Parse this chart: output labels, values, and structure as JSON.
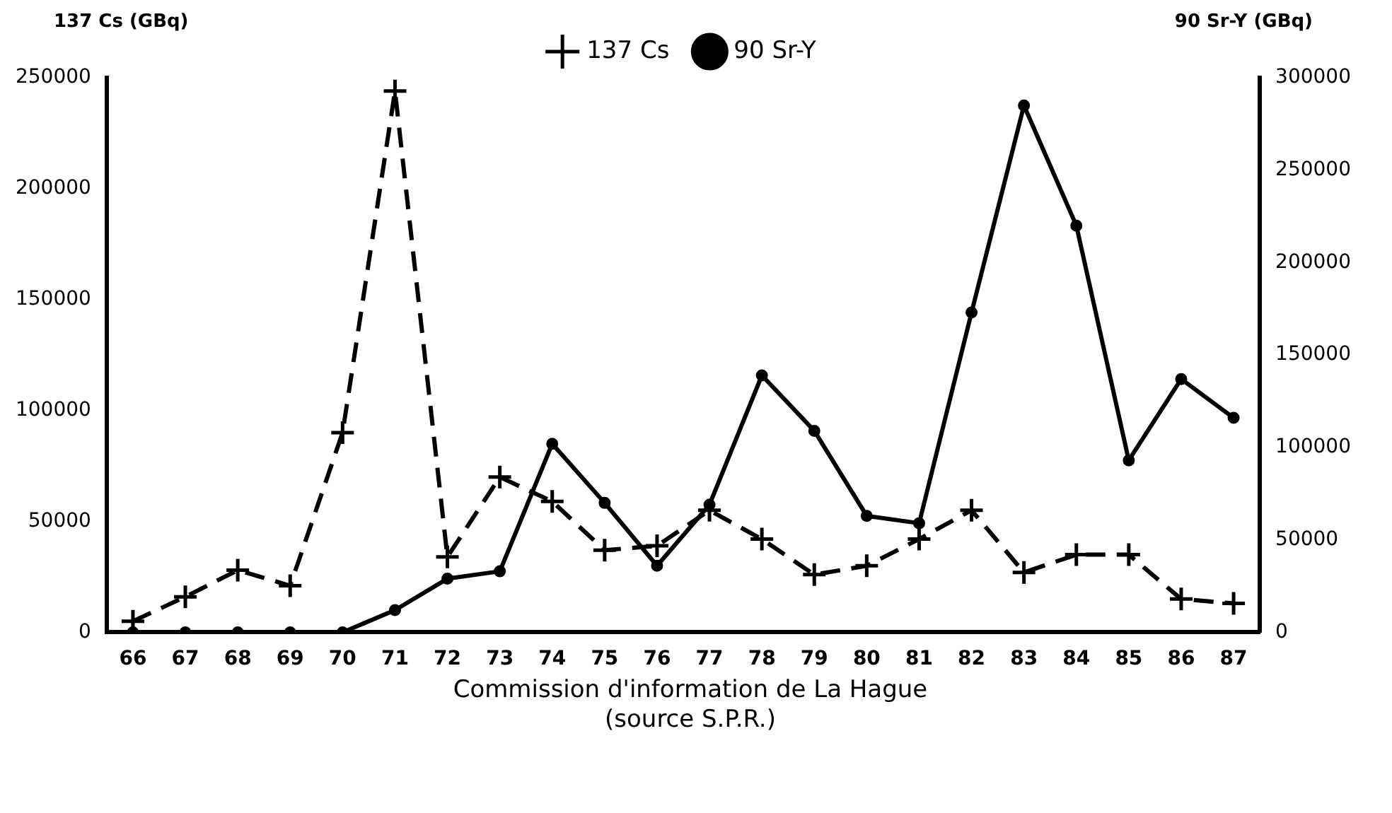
{
  "chart_data": {
    "type": "line",
    "ylabel": "137 Cs (GBq)",
    "y2label": "90 Sr-Y (GBq)",
    "categories": [
      "66",
      "67",
      "68",
      "69",
      "70",
      "71",
      "72",
      "73",
      "74",
      "75",
      "76",
      "77",
      "78",
      "79",
      "80",
      "81",
      "82",
      "83",
      "84",
      "85",
      "86",
      "87"
    ],
    "series": [
      {
        "name": "137 Cs",
        "color": "#000000",
        "marker": "cross",
        "line_style": "dashed",
        "values": [
          5000,
          16000,
          28000,
          21000,
          90000,
          244000,
          34000,
          70000,
          59000,
          37000,
          39000,
          55000,
          42000,
          26000,
          30000,
          42000,
          55000,
          27000,
          35000,
          35000,
          15000,
          13000
        ]
      },
      {
        "name": "90 Sr-Y",
        "color": "#000000",
        "marker": "circle",
        "line_style": "solid",
        "axis": "y2",
        "values": [
          0,
          0,
          0,
          0,
          0,
          12000,
          29000,
          33000,
          102000,
          70000,
          36000,
          69000,
          139000,
          109000,
          63000,
          59000,
          173000,
          285000,
          220000,
          93000,
          137000,
          116000
        ]
      }
    ],
    "ylim": [
      0,
      250000
    ],
    "yticks": [
      0,
      50000,
      100000,
      150000,
      200000,
      250000
    ],
    "y2lim": [
      0,
      300000
    ],
    "y2ticks": [
      0,
      50000,
      100000,
      150000,
      200000,
      250000,
      300000
    ],
    "grid": false,
    "legend": "top",
    "annotations": [
      "Commission d'information de La Hague",
      "(source S.P.R.)"
    ]
  }
}
